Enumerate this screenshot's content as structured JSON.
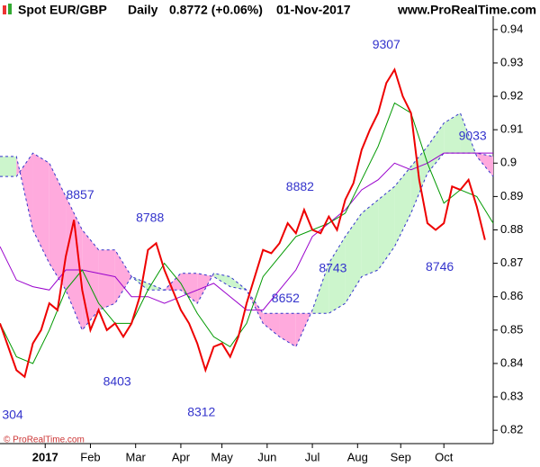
{
  "header": {
    "symbol": "Spot EUR/GBP",
    "period": "Daily",
    "price": "0.8772 (+0.06%)",
    "date": "01-Nov-2017",
    "site": "www.ProRealTime.com"
  },
  "footer": "© ProRealTime.com",
  "chart_data": {
    "type": "line",
    "xlim": [
      0,
      240
    ],
    "ylim": [
      0.816,
      0.944
    ],
    "yticks": [
      0.82,
      0.83,
      0.84,
      0.85,
      0.86,
      0.87,
      0.88,
      0.89,
      0.9,
      0.91,
      0.92,
      0.93,
      0.94
    ],
    "xticks": [
      {
        "value": 22,
        "label": "2017"
      },
      {
        "value": 44,
        "label": "Feb"
      },
      {
        "value": 66,
        "label": "Mar"
      },
      {
        "value": 88,
        "label": "Apr"
      },
      {
        "value": 108,
        "label": "May"
      },
      {
        "value": 130,
        "label": "Jun"
      },
      {
        "value": 152,
        "label": "Jul"
      },
      {
        "value": 174,
        "label": "Aug"
      },
      {
        "value": 195,
        "label": "Sep"
      },
      {
        "value": 216,
        "label": "Oct"
      }
    ],
    "cloud": {
      "up_color": "#ccf5cc",
      "down_color": "#ffaadd",
      "edge_color": "#3333cc",
      "x": [
        0,
        8,
        16,
        24,
        32,
        40,
        48,
        56,
        64,
        72,
        80,
        88,
        96,
        104,
        112,
        120,
        128,
        136,
        144,
        152,
        160,
        168,
        176,
        184,
        192,
        200,
        208,
        216,
        224,
        232,
        240
      ],
      "span_a": [
        0.902,
        0.902,
        0.88,
        0.87,
        0.862,
        0.85,
        0.856,
        0.858,
        0.866,
        0.864,
        0.862,
        0.862,
        0.858,
        0.867,
        0.866,
        0.862,
        0.852,
        0.848,
        0.845,
        0.856,
        0.87,
        0.878,
        0.885,
        0.889,
        0.893,
        0.899,
        0.905,
        0.912,
        0.915,
        0.902,
        0.896
      ],
      "span_b": [
        0.896,
        0.896,
        0.903,
        0.9,
        0.89,
        0.88,
        0.874,
        0.874,
        0.866,
        0.862,
        0.862,
        0.867,
        0.867,
        0.866,
        0.863,
        0.862,
        0.855,
        0.855,
        0.855,
        0.855,
        0.855,
        0.858,
        0.866,
        0.868,
        0.875,
        0.885,
        0.897,
        0.903,
        0.903,
        0.903,
        0.902
      ]
    },
    "series": [
      {
        "color": "#9900cc",
        "x": [
          0,
          8,
          16,
          24,
          32,
          40,
          48,
          56,
          64,
          72,
          80,
          88,
          96,
          104,
          112,
          120,
          128,
          136,
          144,
          152,
          160,
          168,
          176,
          184,
          192,
          200,
          208,
          216,
          224,
          232,
          240
        ],
        "values": [
          0.875,
          0.865,
          0.863,
          0.862,
          0.868,
          0.868,
          0.867,
          0.866,
          0.86,
          0.86,
          0.858,
          0.86,
          0.862,
          0.864,
          0.86,
          0.856,
          0.856,
          0.862,
          0.868,
          0.878,
          0.882,
          0.886,
          0.892,
          0.895,
          0.9,
          0.898,
          0.9,
          0.903,
          0.903,
          0.903,
          0.903
        ]
      },
      {
        "color": "#009900",
        "x": [
          0,
          8,
          16,
          24,
          32,
          40,
          48,
          56,
          64,
          72,
          80,
          88,
          96,
          104,
          112,
          120,
          128,
          136,
          144,
          152,
          160,
          168,
          176,
          184,
          192,
          200,
          208,
          216,
          224,
          232,
          240
        ],
        "values": [
          0.852,
          0.842,
          0.84,
          0.85,
          0.862,
          0.868,
          0.858,
          0.852,
          0.852,
          0.862,
          0.87,
          0.864,
          0.855,
          0.848,
          0.845,
          0.852,
          0.866,
          0.872,
          0.878,
          0.88,
          0.882,
          0.885,
          0.895,
          0.905,
          0.918,
          0.915,
          0.9,
          0.888,
          0.892,
          0.89,
          0.882
        ]
      },
      {
        "color": "#ee0000",
        "x": [
          0,
          4,
          8,
          12,
          16,
          20,
          24,
          28,
          32,
          36,
          40,
          44,
          48,
          52,
          56,
          60,
          64,
          68,
          72,
          76,
          80,
          84,
          88,
          92,
          96,
          100,
          104,
          108,
          112,
          116,
          120,
          124,
          128,
          132,
          136,
          140,
          144,
          148,
          152,
          156,
          160,
          164,
          168,
          172,
          176,
          180,
          184,
          188,
          192,
          196,
          200,
          204,
          208,
          212,
          216,
          220,
          224,
          228,
          232,
          236
        ],
        "values": [
          0.852,
          0.845,
          0.838,
          0.836,
          0.846,
          0.85,
          0.858,
          0.856,
          0.872,
          0.883,
          0.862,
          0.85,
          0.856,
          0.85,
          0.852,
          0.848,
          0.852,
          0.86,
          0.874,
          0.876,
          0.868,
          0.862,
          0.856,
          0.852,
          0.846,
          0.838,
          0.845,
          0.846,
          0.842,
          0.848,
          0.858,
          0.866,
          0.874,
          0.873,
          0.876,
          0.882,
          0.879,
          0.886,
          0.88,
          0.879,
          0.884,
          0.88,
          0.889,
          0.894,
          0.904,
          0.91,
          0.915,
          0.924,
          0.928,
          0.92,
          0.915,
          0.895,
          0.882,
          0.88,
          0.882,
          0.893,
          0.892,
          0.895,
          0.887,
          0.877
        ]
      }
    ],
    "annotations": [
      {
        "label": "304",
        "value": 0.8304,
        "x": 6,
        "side": "below"
      },
      {
        "label": "8857",
        "value": 0.8857,
        "x": 39,
        "side": "above"
      },
      {
        "label": "8403",
        "value": 0.8403,
        "x": 57,
        "side": "below"
      },
      {
        "label": "8788",
        "value": 0.8788,
        "x": 73,
        "side": "above"
      },
      {
        "label": "8312",
        "value": 0.8312,
        "x": 98,
        "side": "below"
      },
      {
        "label": "8652",
        "value": 0.8652,
        "x": 139,
        "side": "below"
      },
      {
        "label": "8882",
        "value": 0.8882,
        "x": 146,
        "side": "above"
      },
      {
        "label": "8743",
        "value": 0.8743,
        "x": 162,
        "side": "below"
      },
      {
        "label": "9307",
        "value": 0.9307,
        "x": 188,
        "side": "above"
      },
      {
        "label": "8746",
        "value": 0.8746,
        "x": 214,
        "side": "below"
      },
      {
        "label": "9033",
        "value": 0.9033,
        "x": 230,
        "side": "above"
      }
    ]
  }
}
